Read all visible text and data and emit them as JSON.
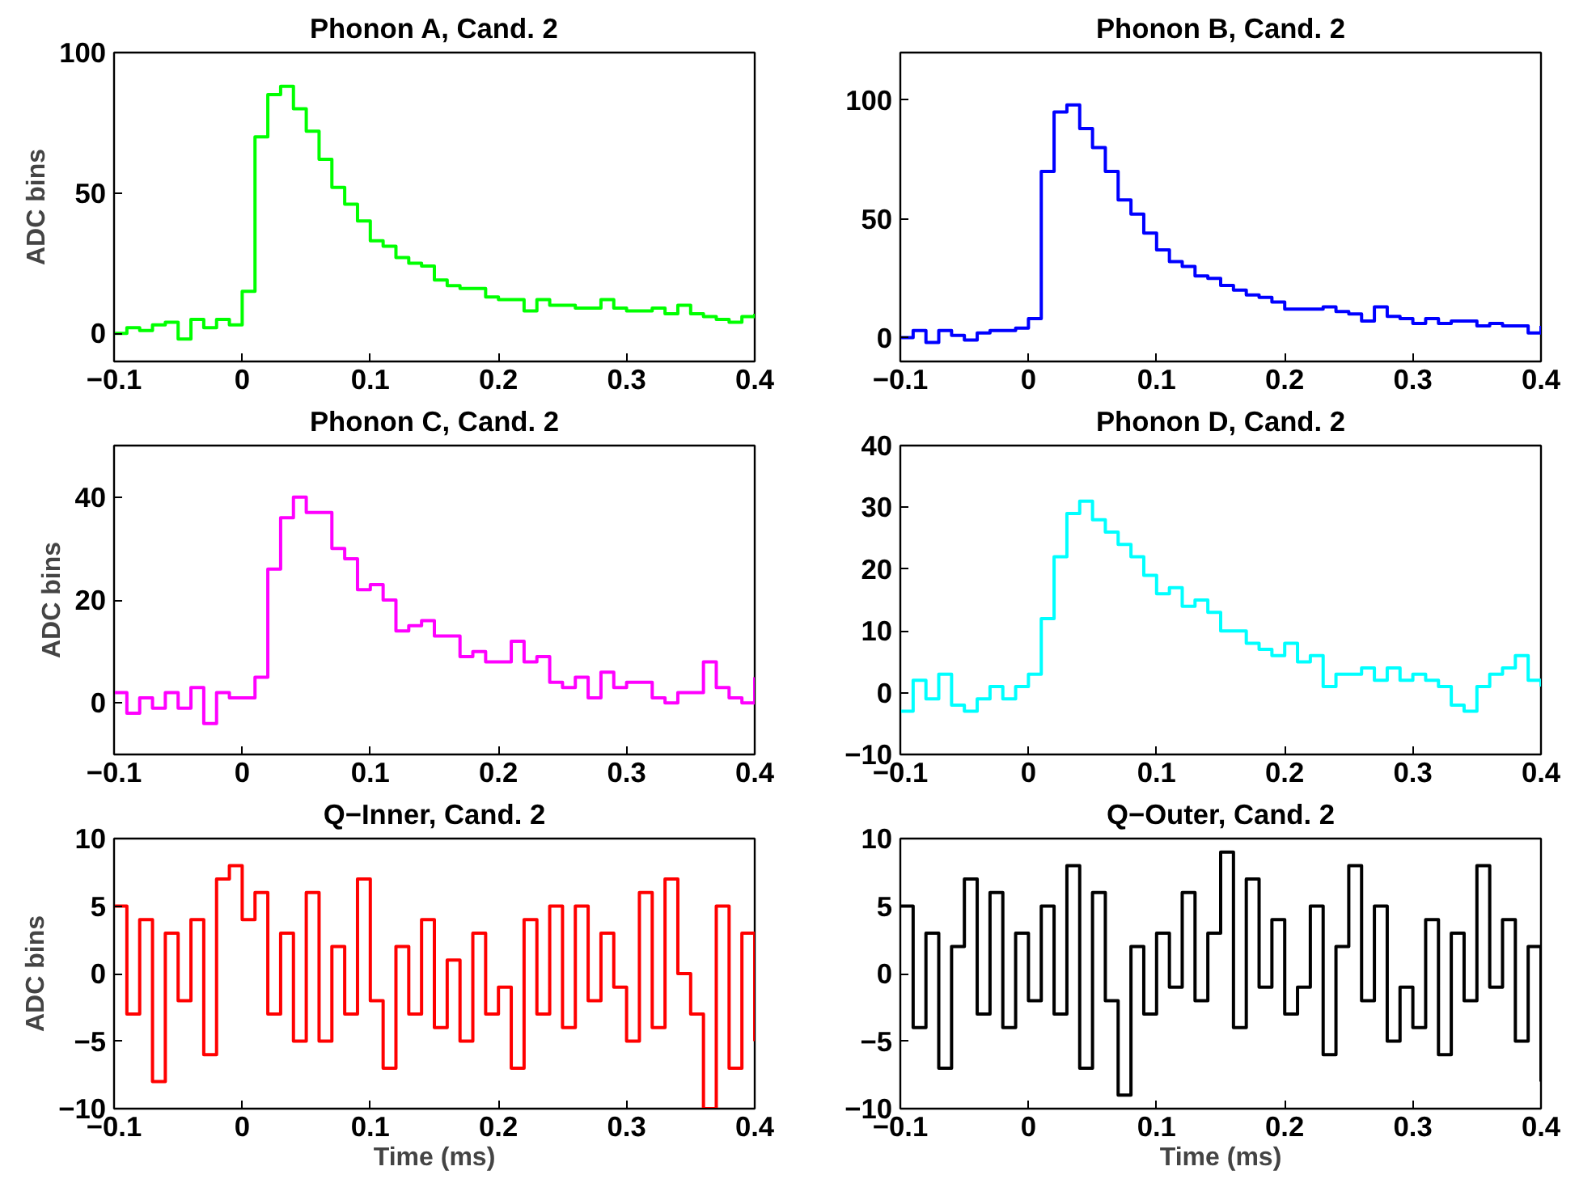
{
  "chart_data": [
    {
      "type": "step",
      "title": "Phonon A, Cand. 2",
      "ylabel": "ADC bins",
      "xlim": [
        -0.1,
        0.4
      ],
      "ylim": [
        -10,
        100
      ],
      "xticks": [
        -0.1,
        0,
        0.1,
        0.2,
        0.3,
        0.4
      ],
      "yticks": [
        0,
        50,
        100
      ],
      "grid": false,
      "x": [
        -0.1,
        -0.09,
        -0.08,
        -0.07,
        -0.06,
        -0.05,
        -0.04,
        -0.03,
        -0.02,
        -0.01,
        0,
        0.01,
        0.02,
        0.03,
        0.04,
        0.05,
        0.06,
        0.07,
        0.08,
        0.09,
        0.1,
        0.11,
        0.12,
        0.13,
        0.14,
        0.15,
        0.16,
        0.17,
        0.18,
        0.19,
        0.2,
        0.21,
        0.22,
        0.23,
        0.24,
        0.25,
        0.26,
        0.27,
        0.28,
        0.29,
        0.3,
        0.31,
        0.32,
        0.33,
        0.34,
        0.35,
        0.36,
        0.37,
        0.38,
        0.39,
        0.4
      ],
      "series": [
        {
          "color": "#00ff00",
          "values": [
            0,
            2,
            1,
            3,
            4,
            -2,
            5,
            2,
            5,
            3,
            15,
            70,
            85,
            88,
            80,
            72,
            62,
            52,
            46,
            40,
            33,
            31,
            27,
            25,
            24,
            19,
            17,
            16,
            16,
            13,
            12,
            12,
            8,
            12,
            10,
            10,
            9,
            9,
            12,
            9,
            8,
            8,
            9,
            7,
            10,
            7,
            6,
            5,
            4,
            6,
            7
          ]
        }
      ]
    },
    {
      "type": "step",
      "title": "Phonon B, Cand. 2",
      "xlim": [
        -0.1,
        0.4
      ],
      "ylim": [
        -10,
        120
      ],
      "xticks": [
        -0.1,
        0,
        0.1,
        0.2,
        0.3,
        0.4
      ],
      "yticks": [
        0,
        50,
        100
      ],
      "grid": false,
      "x": [
        -0.1,
        -0.09,
        -0.08,
        -0.07,
        -0.06,
        -0.05,
        -0.04,
        -0.03,
        -0.02,
        -0.01,
        0,
        0.01,
        0.02,
        0.03,
        0.04,
        0.05,
        0.06,
        0.07,
        0.08,
        0.09,
        0.1,
        0.11,
        0.12,
        0.13,
        0.14,
        0.15,
        0.16,
        0.17,
        0.18,
        0.19,
        0.2,
        0.21,
        0.22,
        0.23,
        0.24,
        0.25,
        0.26,
        0.27,
        0.28,
        0.29,
        0.3,
        0.31,
        0.32,
        0.33,
        0.34,
        0.35,
        0.36,
        0.37,
        0.38,
        0.39,
        0.4
      ],
      "series": [
        {
          "color": "#0000ff",
          "values": [
            0,
            3,
            -2,
            3,
            1,
            -1,
            2,
            3,
            3,
            4,
            8,
            70,
            95,
            98,
            88,
            80,
            70,
            58,
            52,
            44,
            37,
            32,
            30,
            26,
            25,
            22,
            20,
            18,
            17,
            15,
            12,
            12,
            12,
            13,
            11,
            10,
            7,
            13,
            9,
            8,
            6,
            8,
            6,
            7,
            7,
            5,
            6,
            5,
            5,
            2,
            5
          ]
        }
      ]
    },
    {
      "type": "step",
      "title": "Phonon C, Cand. 2",
      "ylabel": "ADC bins",
      "xlim": [
        -0.1,
        0.4
      ],
      "ylim": [
        -10,
        50
      ],
      "xticks": [
        -0.1,
        0,
        0.1,
        0.2,
        0.3,
        0.4
      ],
      "yticks": [
        0,
        20,
        40
      ],
      "grid": false,
      "x": [
        -0.1,
        -0.09,
        -0.08,
        -0.07,
        -0.06,
        -0.05,
        -0.04,
        -0.03,
        -0.02,
        -0.01,
        0,
        0.01,
        0.02,
        0.03,
        0.04,
        0.05,
        0.06,
        0.07,
        0.08,
        0.09,
        0.1,
        0.11,
        0.12,
        0.13,
        0.14,
        0.15,
        0.16,
        0.17,
        0.18,
        0.19,
        0.2,
        0.21,
        0.22,
        0.23,
        0.24,
        0.25,
        0.26,
        0.27,
        0.28,
        0.29,
        0.3,
        0.31,
        0.32,
        0.33,
        0.34,
        0.35,
        0.36,
        0.37,
        0.38,
        0.39,
        0.4
      ],
      "series": [
        {
          "color": "#ff00ff",
          "values": [
            2,
            -2,
            1,
            -1,
            2,
            -1,
            3,
            -4,
            2,
            1,
            1,
            5,
            26,
            36,
            40,
            37,
            37,
            30,
            28,
            22,
            23,
            20,
            14,
            15,
            16,
            13,
            13,
            9,
            10,
            8,
            8,
            12,
            8,
            9,
            4,
            3,
            5,
            1,
            6,
            3,
            4,
            4,
            1,
            0,
            2,
            2,
            8,
            3,
            1,
            0,
            5
          ]
        }
      ]
    },
    {
      "type": "step",
      "title": "Phonon D, Cand. 2",
      "xlim": [
        -0.1,
        0.4
      ],
      "ylim": [
        -10,
        40
      ],
      "xticks": [
        -0.1,
        0,
        0.1,
        0.2,
        0.3,
        0.4
      ],
      "yticks": [
        -10,
        0,
        10,
        20,
        30,
        40
      ],
      "grid": false,
      "x": [
        -0.1,
        -0.09,
        -0.08,
        -0.07,
        -0.06,
        -0.05,
        -0.04,
        -0.03,
        -0.02,
        -0.01,
        0,
        0.01,
        0.02,
        0.03,
        0.04,
        0.05,
        0.06,
        0.07,
        0.08,
        0.09,
        0.1,
        0.11,
        0.12,
        0.13,
        0.14,
        0.15,
        0.16,
        0.17,
        0.18,
        0.19,
        0.2,
        0.21,
        0.22,
        0.23,
        0.24,
        0.25,
        0.26,
        0.27,
        0.28,
        0.29,
        0.3,
        0.31,
        0.32,
        0.33,
        0.34,
        0.35,
        0.36,
        0.37,
        0.38,
        0.39,
        0.4
      ],
      "series": [
        {
          "color": "#00ffff",
          "values": [
            -3,
            2,
            -1,
            3,
            -2,
            -3,
            -1,
            1,
            -1,
            1,
            3,
            12,
            22,
            29,
            31,
            28,
            26,
            24,
            22,
            19,
            16,
            17,
            14,
            15,
            13,
            10,
            10,
            8,
            7,
            6,
            8,
            5,
            6,
            1,
            3,
            3,
            4,
            2,
            4,
            2,
            3,
            2,
            1,
            -2,
            -3,
            1,
            3,
            4,
            6,
            2,
            1
          ]
        }
      ]
    },
    {
      "type": "step",
      "title": "Q−Inner, Cand. 2",
      "ylabel": "ADC bins",
      "xlabel": "Time (ms)",
      "xlim": [
        -0.1,
        0.4
      ],
      "ylim": [
        -10,
        10
      ],
      "xticks": [
        -0.1,
        0,
        0.1,
        0.2,
        0.3,
        0.4
      ],
      "yticks": [
        -10,
        -5,
        0,
        5,
        10
      ],
      "grid": false,
      "x": [
        -0.1,
        -0.09,
        -0.08,
        -0.07,
        -0.06,
        -0.05,
        -0.04,
        -0.03,
        -0.02,
        -0.01,
        0,
        0.01,
        0.02,
        0.03,
        0.04,
        0.05,
        0.06,
        0.07,
        0.08,
        0.09,
        0.1,
        0.11,
        0.12,
        0.13,
        0.14,
        0.15,
        0.16,
        0.17,
        0.18,
        0.19,
        0.2,
        0.21,
        0.22,
        0.23,
        0.24,
        0.25,
        0.26,
        0.27,
        0.28,
        0.29,
        0.3,
        0.31,
        0.32,
        0.33,
        0.34,
        0.35,
        0.36,
        0.37,
        0.38,
        0.39,
        0.4
      ],
      "series": [
        {
          "color": "#ff0000",
          "values": [
            5,
            -3,
            4,
            -8,
            3,
            -2,
            4,
            -6,
            7,
            8,
            4,
            6,
            -3,
            3,
            -5,
            6,
            -5,
            2,
            -3,
            7,
            -2,
            -7,
            2,
            -3,
            4,
            -4,
            1,
            -5,
            3,
            -3,
            -1,
            -7,
            4,
            -3,
            5,
            -4,
            5,
            -2,
            3,
            -1,
            -5,
            6,
            -4,
            7,
            0,
            -3,
            -10,
            5,
            -7,
            3,
            -5
          ]
        }
      ]
    },
    {
      "type": "step",
      "title": "Q−Outer, Cand. 2",
      "xlabel": "Time (ms)",
      "xlim": [
        -0.1,
        0.4
      ],
      "ylim": [
        -10,
        10
      ],
      "xticks": [
        -0.1,
        0,
        0.1,
        0.2,
        0.3,
        0.4
      ],
      "yticks": [
        -10,
        -5,
        0,
        5,
        10
      ],
      "grid": false,
      "x": [
        -0.1,
        -0.09,
        -0.08,
        -0.07,
        -0.06,
        -0.05,
        -0.04,
        -0.03,
        -0.02,
        -0.01,
        0,
        0.01,
        0.02,
        0.03,
        0.04,
        0.05,
        0.06,
        0.07,
        0.08,
        0.09,
        0.1,
        0.11,
        0.12,
        0.13,
        0.14,
        0.15,
        0.16,
        0.17,
        0.18,
        0.19,
        0.2,
        0.21,
        0.22,
        0.23,
        0.24,
        0.25,
        0.26,
        0.27,
        0.28,
        0.29,
        0.3,
        0.31,
        0.32,
        0.33,
        0.34,
        0.35,
        0.36,
        0.37,
        0.38,
        0.39,
        0.4
      ],
      "series": [
        {
          "color": "#000000",
          "values": [
            5,
            -4,
            3,
            -7,
            2,
            7,
            -3,
            6,
            -4,
            3,
            -2,
            5,
            -3,
            8,
            -7,
            6,
            -2,
            -9,
            2,
            -3,
            3,
            -1,
            6,
            -2,
            3,
            9,
            -4,
            7,
            -1,
            4,
            -3,
            -1,
            5,
            -6,
            2,
            8,
            -2,
            5,
            -5,
            -1,
            -4,
            4,
            -6,
            3,
            -2,
            8,
            -1,
            4,
            -5,
            2,
            -8
          ]
        }
      ]
    }
  ]
}
